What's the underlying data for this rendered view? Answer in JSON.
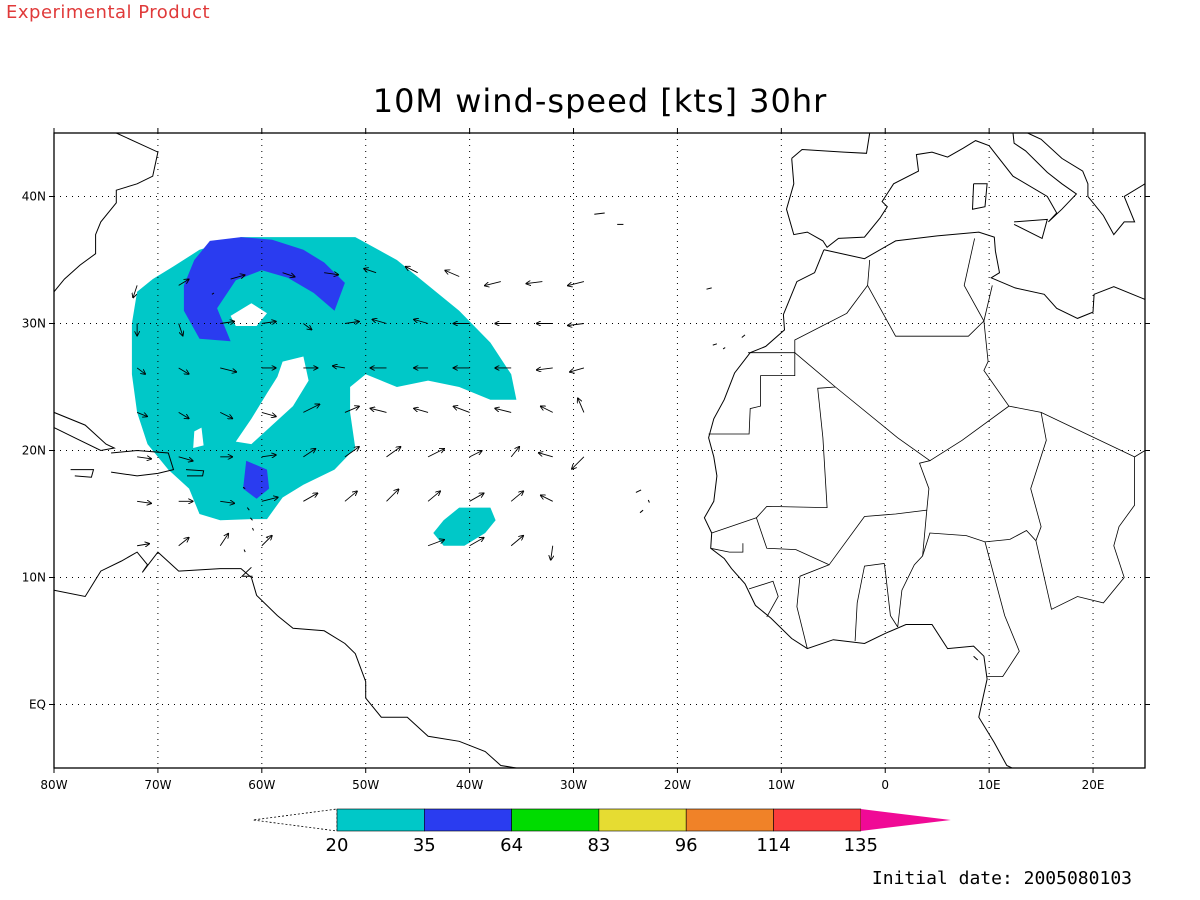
{
  "header": {
    "experimental": "Experimental Product",
    "title": "10M wind-speed [kts] 30hr"
  },
  "footer": {
    "initial_date": "Initial date: 2005080103"
  },
  "map": {
    "lon_range": [
      -80,
      25
    ],
    "lat_range": [
      -5,
      45
    ],
    "x_ticks": [
      {
        "lon": -80,
        "label": "80W"
      },
      {
        "lon": -70,
        "label": "70W"
      },
      {
        "lon": -60,
        "label": "60W"
      },
      {
        "lon": -50,
        "label": "50W"
      },
      {
        "lon": -40,
        "label": "40W"
      },
      {
        "lon": -30,
        "label": "30W"
      },
      {
        "lon": -20,
        "label": "20W"
      },
      {
        "lon": -10,
        "label": "10W"
      },
      {
        "lon": 0,
        "label": "0"
      },
      {
        "lon": 10,
        "label": "10E"
      },
      {
        "lon": 20,
        "label": "20E"
      }
    ],
    "y_ticks": [
      {
        "lat": 40,
        "label": "40N"
      },
      {
        "lat": 30,
        "label": "30N"
      },
      {
        "lat": 20,
        "label": "20N"
      },
      {
        "lat": 10,
        "label": "10N"
      },
      {
        "lat": 0,
        "label": "EQ"
      }
    ],
    "grid": "dotted",
    "land_color": "#ffffff",
    "coast_color": "#000000"
  },
  "colorbar": {
    "thresholds": [
      "20",
      "35",
      "64",
      "83",
      "96",
      "114",
      "135"
    ],
    "colors": [
      "#00c8c8",
      "#2a3cf0",
      "#00dc00",
      "#e6dc32",
      "#f08228",
      "#fa3c3c",
      "#f00a96"
    ],
    "open_ended_low": true,
    "open_ended_high": true
  },
  "chart_data": {
    "type": "heatmap",
    "title": "10M wind-speed [kts] 30hr",
    "units": "kts",
    "levels": [
      20,
      35,
      64,
      83,
      96,
      114,
      135
    ],
    "regions": [
      {
        "level": "20-35",
        "color": "#00c8c8",
        "polygon_lonlat": [
          [
            -66,
            35.8
          ],
          [
            -62,
            36.8
          ],
          [
            -55,
            36.8
          ],
          [
            -51,
            36.8
          ],
          [
            -47,
            35
          ],
          [
            -44,
            33
          ],
          [
            -41,
            31
          ],
          [
            -38,
            28.5
          ],
          [
            -36,
            26
          ],
          [
            -35.5,
            24
          ],
          [
            -38,
            24
          ],
          [
            -41,
            25
          ],
          [
            -44,
            25.5
          ],
          [
            -47,
            25
          ],
          [
            -50,
            26
          ],
          [
            -51.5,
            25
          ],
          [
            -51.5,
            23
          ],
          [
            -51,
            20.2
          ],
          [
            -53,
            18.5
          ],
          [
            -56,
            17.3
          ],
          [
            -58,
            16.3
          ],
          [
            -59.5,
            14.6
          ],
          [
            -61,
            14.6
          ],
          [
            -64,
            14.5
          ],
          [
            -66,
            15
          ],
          [
            -67,
            17
          ],
          [
            -69,
            18.5
          ],
          [
            -71,
            20.5
          ],
          [
            -72,
            23
          ],
          [
            -72.5,
            26
          ],
          [
            -72.5,
            30
          ],
          [
            -72,
            32.5
          ],
          [
            -70.5,
            33.5
          ],
          [
            -68.5,
            34.5
          ]
        ]
      },
      {
        "level": "20-35",
        "color": "#00c8c8",
        "polygon_lonlat": [
          [
            -41,
            15.5
          ],
          [
            -38,
            15.5
          ],
          [
            -37.5,
            14.5
          ],
          [
            -38.5,
            13.5
          ],
          [
            -40.5,
            12.5
          ],
          [
            -42.5,
            12.5
          ],
          [
            -43.5,
            13.5
          ],
          [
            -42.5,
            14.5
          ]
        ]
      },
      {
        "level": "35-64",
        "color": "#2a3cf0",
        "polygon_lonlat": [
          [
            -65,
            36.5
          ],
          [
            -62,
            36.8
          ],
          [
            -59,
            36.6
          ],
          [
            -56,
            35.8
          ],
          [
            -54,
            34.8
          ],
          [
            -52,
            33.2
          ],
          [
            -53,
            31
          ],
          [
            -55,
            32.4
          ],
          [
            -57.5,
            33.6
          ],
          [
            -60,
            34.2
          ],
          [
            -62.5,
            33.4
          ],
          [
            -64.3,
            31.2
          ],
          [
            -63,
            28.6
          ],
          [
            -66,
            28.8
          ],
          [
            -67.5,
            31
          ],
          [
            -67.5,
            33
          ],
          [
            -66.5,
            35
          ]
        ]
      },
      {
        "level": "35-64",
        "color": "#2a3cf0",
        "polygon_lonlat": [
          [
            -61.5,
            19.2
          ],
          [
            -59.5,
            18.5
          ],
          [
            -59.3,
            17
          ],
          [
            -60.5,
            16.2
          ],
          [
            -61.8,
            17
          ]
        ]
      }
    ]
  }
}
